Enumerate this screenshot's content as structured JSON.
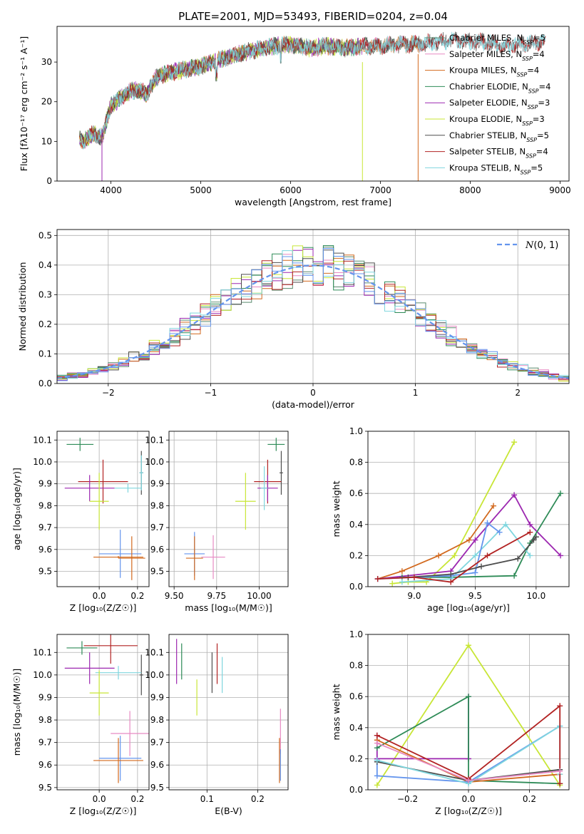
{
  "chart_data": [
    {
      "id": "spectrum",
      "type": "line",
      "title": "PLATE=2001, MJD=53493, FIBERID=0204, z=0.04",
      "xlabel": "wavelength [Angstrom, rest frame]",
      "ylabel": "Flux [fλ10⁻¹⁷ erg cm⁻² s⁻¹ A⁻¹]",
      "xlim": [
        3400,
        9100
      ],
      "ylim": [
        0,
        39
      ],
      "xticks": [
        4000,
        5000,
        6000,
        7000,
        8000,
        9000
      ],
      "yticks": [
        0,
        10,
        20,
        30
      ],
      "grid": false,
      "legend_position": "right",
      "continuum": {
        "x": [
          3650,
          3700,
          3800,
          3900,
          4000,
          4100,
          4200,
          4300,
          4400,
          4500,
          4600,
          4800,
          5000,
          5200,
          5400,
          5600,
          5800,
          6000,
          6200,
          6400,
          6600,
          6800,
          7000,
          7200,
          7400,
          7600,
          7800,
          8000,
          8200,
          8400,
          8600,
          8840
        ],
        "y": [
          11,
          10,
          12,
          11,
          19,
          21,
          22.5,
          23,
          22,
          26,
          27,
          28,
          29,
          30.5,
          32,
          33,
          34,
          34.5,
          33.5,
          34,
          33.5,
          34,
          34,
          34.5,
          34.5,
          35,
          35.5,
          35,
          35,
          34,
          34.5,
          35
        ]
      },
      "dropouts": [
        {
          "series": "Salpeter ELODIE",
          "x": 3900,
          "y_from": 13,
          "y_to": 0
        },
        {
          "series": "Kroupa ELODIE",
          "x": 6800,
          "y_from": 30,
          "y_to": 0
        },
        {
          "series": "Kroupa MILES",
          "x": 7420,
          "y_from": 32,
          "y_to": 0
        }
      ],
      "series": [
        {
          "name": "Chabrier MILES, N$_{SSP}$=5",
          "color": "#5a8a6e",
          "x_end": 7460
        },
        {
          "name": "Salpeter MILES, N$_{SSP}$=4",
          "color": "#e78ac3",
          "x_end": 7460
        },
        {
          "name": "Kroupa MILES, N$_{SSP}$=4",
          "color": "#d2691e",
          "x_end": 7460
        },
        {
          "name": "Chabrier ELODIE, N$_{SSP}$=4",
          "color": "#2e8b57",
          "x_end": 6800
        },
        {
          "name": "Salpeter ELODIE, N$_{SSP}$=3",
          "color": "#9c27b0",
          "x_end": 6800
        },
        {
          "name": "Kroupa ELODIE, N$_{SSP}$=3",
          "color": "#c8e636",
          "x_end": 6800
        },
        {
          "name": "Chabrier STELIB, N$_{SSP}$=5",
          "color": "#4d4d4d",
          "x_end": 8840
        },
        {
          "name": "Salpeter STELIB, N$_{SSP}$=4",
          "color": "#b22222",
          "x_end": 8840
        },
        {
          "name": "Kroupa STELIB, N$_{SSP}$=5",
          "color": "#7fd6de",
          "x_end": 8840
        }
      ]
    },
    {
      "id": "residuals",
      "type": "line",
      "xlabel": "(data-model)/error",
      "ylabel": "Normed distribution",
      "xlim": [
        -2.5,
        2.5
      ],
      "ylim": [
        0,
        0.52
      ],
      "xticks": [
        -2,
        -1,
        0,
        1,
        2
      ],
      "yticks": [
        0.0,
        0.1,
        0.2,
        0.3,
        0.4,
        0.5
      ],
      "grid": true,
      "legend_position": "top-right",
      "legend": "$\\mathcal{N}(0,1)$",
      "gaussian_color": "#6495ed",
      "bin_width": 0.1,
      "histogram_colors": [
        "#5a8a6e",
        "#e78ac3",
        "#d2691e",
        "#2e8b57",
        "#9c27b0",
        "#c8e636",
        "#4d4d4d",
        "#b22222",
        "#7fd6de",
        "#6495ed"
      ]
    },
    {
      "id": "z-age",
      "type": "scatter",
      "xlabel": "Z [log₁₀(Z/Z☉)]",
      "ylabel": "age  [log₁₀(age/yr)]",
      "xlim": [
        -0.22,
        0.26
      ],
      "ylim": [
        9.43,
        10.14
      ],
      "xticks": [
        0.0,
        0.2
      ],
      "yticks": [
        9.5,
        9.6,
        9.7,
        9.8,
        9.9,
        10.0,
        10.1
      ],
      "points": [
        {
          "color": "#2e8b57",
          "x": -0.1,
          "xerr": 0.07,
          "y": 10.08,
          "yerr": 0.03
        },
        {
          "color": "#4d4d4d",
          "x": 0.22,
          "xerr": 0.01,
          "y": 9.95,
          "yerr": 0.1
        },
        {
          "color": "#7fd6de",
          "x": 0.22,
          "xerr": 0.01,
          "y": 9.95,
          "yerr": 0.08
        },
        {
          "color": "#b22222",
          "x": 0.02,
          "xerr": 0.13,
          "y": 9.91,
          "yerr": 0.1
        },
        {
          "color": "#9c27b0",
          "x": -0.05,
          "xerr": 0.13,
          "y": 9.88,
          "yerr": 0.06
        },
        {
          "color": "#7fd6de",
          "x": 0.15,
          "xerr": 0.07,
          "y": 9.88,
          "yerr": 0.02
        },
        {
          "color": "#c8e636",
          "x": 0.0,
          "xerr": 0.05,
          "y": 9.82,
          "yerr": 0.13
        },
        {
          "color": "#6495ed",
          "x": 0.11,
          "xerr": 0.11,
          "y": 9.58,
          "yerr": 0.11
        },
        {
          "color": "#d2691e",
          "x": 0.17,
          "xerr": 0.07,
          "y": 9.56,
          "yerr": 0.1
        },
        {
          "color": "#d2691e",
          "x": 0.1,
          "xerr": 0.13,
          "y": 9.565,
          "yerr": 0.005
        }
      ]
    },
    {
      "id": "mass-age",
      "type": "scatter",
      "xlabel": "mass [log₁₀(M/M☉)]",
      "ylabel": "",
      "xlim": [
        9.47,
        10.17
      ],
      "ylim": [
        9.43,
        10.14
      ],
      "xticks": [
        9.5,
        9.75,
        10.0
      ],
      "yticks": [
        9.5,
        9.6,
        9.7,
        9.8,
        9.9,
        10.0,
        10.1
      ],
      "points": [
        {
          "color": "#2e8b57",
          "x": 10.1,
          "xerr": 0.05,
          "y": 10.08,
          "yerr": 0.03
        },
        {
          "color": "#4d4d4d",
          "x": 10.13,
          "xerr": 0.01,
          "y": 9.95,
          "yerr": 0.1
        },
        {
          "color": "#b22222",
          "x": 10.05,
          "xerr": 0.08,
          "y": 9.91,
          "yerr": 0.1
        },
        {
          "color": "#9c27b0",
          "x": 10.05,
          "xerr": 0.06,
          "y": 9.88,
          "yerr": 0.06
        },
        {
          "color": "#7fd6de",
          "x": 10.03,
          "xerr": 0.02,
          "y": 9.88,
          "yerr": 0.1
        },
        {
          "color": "#c8e636",
          "x": 9.92,
          "xerr": 0.06,
          "y": 9.82,
          "yerr": 0.13
        },
        {
          "color": "#6495ed",
          "x": 9.62,
          "xerr": 0.06,
          "y": 9.58,
          "yerr": 0.1
        },
        {
          "color": "#d2691e",
          "x": 9.62,
          "xerr": 0.05,
          "y": 9.56,
          "yerr": 0.1
        },
        {
          "color": "#e78ac3",
          "x": 9.73,
          "xerr": 0.07,
          "y": 9.565,
          "yerr": 0.1
        }
      ]
    },
    {
      "id": "age-weight",
      "type": "line",
      "xlabel": "age  [log₁₀(age/yr)]",
      "ylabel": "mass weight",
      "xlim": [
        8.62,
        10.27
      ],
      "ylim": [
        0,
        1
      ],
      "xticks": [
        9.0,
        9.5,
        10.0
      ],
      "yticks": [
        0.0,
        0.2,
        0.4,
        0.6,
        0.8,
        1.0
      ],
      "grid": true,
      "series": [
        {
          "color": "#c8e636",
          "x": [
            8.82,
            8.95,
            9.1,
            9.33,
            9.82
          ],
          "y": [
            0.02,
            0.03,
            0.03,
            0.2,
            0.93
          ]
        },
        {
          "color": "#d2691e",
          "x": [
            8.7,
            8.9,
            9.2,
            9.45,
            9.65
          ],
          "y": [
            0.05,
            0.1,
            0.2,
            0.3,
            0.52
          ]
        },
        {
          "color": "#9c27b0",
          "x": [
            8.7,
            9.3,
            9.5,
            9.82,
            9.95,
            10.2
          ],
          "y": [
            0.05,
            0.1,
            0.3,
            0.59,
            0.4,
            0.2
          ]
        },
        {
          "color": "#2e8b57",
          "x": [
            8.9,
            9.3,
            9.82,
            9.95,
            10.2
          ],
          "y": [
            0.06,
            0.06,
            0.07,
            0.28,
            0.6
          ]
        },
        {
          "color": "#7fd6de",
          "x": [
            8.9,
            9.3,
            9.5,
            9.75,
            9.95
          ],
          "y": [
            0.03,
            0.05,
            0.2,
            0.4,
            0.2
          ]
        },
        {
          "color": "#6495ed",
          "x": [
            8.7,
            9.3,
            9.5,
            9.6,
            9.7
          ],
          "y": [
            0.05,
            0.07,
            0.09,
            0.41,
            0.35
          ]
        },
        {
          "color": "#4d4d4d",
          "x": [
            8.95,
            9.3,
            9.55,
            9.85,
            9.98,
            10.0
          ],
          "y": [
            0.06,
            0.08,
            0.13,
            0.18,
            0.3,
            0.32
          ]
        },
        {
          "color": "#b22222",
          "x": [
            8.7,
            9.0,
            9.3,
            9.6,
            9.95
          ],
          "y": [
            0.05,
            0.06,
            0.03,
            0.2,
            0.35
          ]
        }
      ]
    },
    {
      "id": "z-mass",
      "type": "scatter",
      "xlabel": "Z [log₁₀(Z/Z☉)]",
      "ylabel": "mass [log₁₀(M/M☉)]",
      "xlim": [
        -0.22,
        0.26
      ],
      "ylim": [
        9.49,
        10.18
      ],
      "xticks": [
        0.0,
        0.2
      ],
      "yticks": [
        9.5,
        9.6,
        9.7,
        9.8,
        9.9,
        10.0,
        10.1
      ],
      "points": [
        {
          "color": "#2e8b57",
          "x": -0.09,
          "xerr": 0.08,
          "y": 10.12,
          "yerr": 0.03
        },
        {
          "color": "#b22222",
          "x": 0.06,
          "xerr": 0.14,
          "y": 10.13,
          "yerr": 0.08
        },
        {
          "color": "#9c27b0",
          "x": -0.05,
          "xerr": 0.13,
          "y": 10.03,
          "yerr": 0.07
        },
        {
          "color": "#4d4d4d",
          "x": 0.22,
          "xerr": 0.01,
          "y": 10.0,
          "yerr": 0.09
        },
        {
          "color": "#7fd6de",
          "x": 0.1,
          "xerr": 0.12,
          "y": 10.01,
          "yerr": 0.03
        },
        {
          "color": "#c8e636",
          "x": 0.0,
          "xerr": 0.05,
          "y": 9.92,
          "yerr": 0.1
        },
        {
          "color": "#e78ac3",
          "x": 0.16,
          "xerr": 0.1,
          "y": 9.74,
          "yerr": 0.1
        },
        {
          "color": "#6495ed",
          "x": 0.11,
          "xerr": 0.11,
          "y": 9.63,
          "yerr": 0.1
        },
        {
          "color": "#d2691e",
          "x": 0.1,
          "xerr": 0.13,
          "y": 9.62,
          "yerr": 0.1
        }
      ]
    },
    {
      "id": "ebv-mass",
      "type": "scatter",
      "xlabel": "E(B-V)",
      "ylabel": "",
      "xlim": [
        0.025,
        0.26
      ],
      "ylim": [
        9.49,
        10.18
      ],
      "xticks": [
        0.1,
        0.2
      ],
      "yticks": [
        9.5,
        9.6,
        9.7,
        9.8,
        9.9,
        10.0,
        10.1
      ],
      "points": [
        {
          "color": "#9c27b0",
          "x": 0.04,
          "y": 10.06,
          "yerr": 0.1
        },
        {
          "color": "#2e8b57",
          "x": 0.05,
          "y": 10.06,
          "yerr": 0.08
        },
        {
          "color": "#c8e636",
          "x": 0.08,
          "y": 9.9,
          "yerr": 0.08
        },
        {
          "color": "#4d4d4d",
          "x": 0.11,
          "y": 10.01,
          "yerr": 0.09
        },
        {
          "color": "#b22222",
          "x": 0.12,
          "y": 10.05,
          "yerr": 0.09
        },
        {
          "color": "#7fd6de",
          "x": 0.13,
          "y": 10.0,
          "yerr": 0.08
        },
        {
          "color": "#e78ac3",
          "x": 0.245,
          "y": 9.75,
          "yerr": 0.1
        },
        {
          "color": "#d2691e",
          "x": 0.243,
          "y": 9.62,
          "yerr": 0.1
        },
        {
          "color": "#6495ed",
          "x": 0.245,
          "y": 9.6,
          "yerr": 0.07
        }
      ]
    },
    {
      "id": "z-weight",
      "type": "line",
      "xlabel": "Z [log₁₀(Z/Z☉)]",
      "ylabel": "mass weight",
      "xlim": [
        -0.33,
        0.33
      ],
      "ylim": [
        0,
        1
      ],
      "xticks": [
        -0.2,
        0.0,
        0.2
      ],
      "yticks": [
        0.0,
        0.2,
        0.4,
        0.6,
        0.8,
        1.0
      ],
      "grid": true,
      "series": [
        {
          "color": "#c8e636",
          "x": [
            -0.3,
            0.0,
            0.3
          ],
          "y": [
            0.03,
            0.93,
            0.03
          ]
        },
        {
          "color": "#9c27b0",
          "x": [
            -0.3,
            -0.3,
            0.0,
            0.0,
            0.0
          ],
          "y": [
            0.35,
            0.2,
            0.2,
            0.6,
            0.2
          ]
        },
        {
          "color": "#2e8b57",
          "x": [
            -0.3,
            0.0,
            0.0,
            0.3
          ],
          "y": [
            0.27,
            0.6,
            0.06,
            0.04
          ]
        },
        {
          "color": "#d2691e",
          "x": [
            -0.3,
            0.0,
            0.3
          ],
          "y": [
            0.32,
            0.05,
            0.1
          ]
        },
        {
          "color": "#6495ed",
          "x": [
            -0.3,
            -0.3,
            0.0,
            0.3
          ],
          "y": [
            0.19,
            0.09,
            0.05,
            0.41
          ]
        },
        {
          "color": "#4d4d4d",
          "x": [
            -0.3,
            0.0,
            0.3
          ],
          "y": [
            0.18,
            0.06,
            0.13
          ]
        },
        {
          "color": "#7fd6de",
          "x": [
            -0.3,
            0.0,
            0.3,
            0.3
          ],
          "y": [
            0.19,
            0.04,
            0.41,
            0.1
          ]
        },
        {
          "color": "#b22222",
          "x": [
            -0.3,
            0.0,
            0.3,
            0.3
          ],
          "y": [
            0.35,
            0.07,
            0.54,
            0.04
          ]
        },
        {
          "color": "#e78ac3",
          "x": [
            -0.3,
            0.0,
            0.3
          ],
          "y": [
            0.3,
            0.06,
            0.12
          ]
        }
      ]
    }
  ]
}
